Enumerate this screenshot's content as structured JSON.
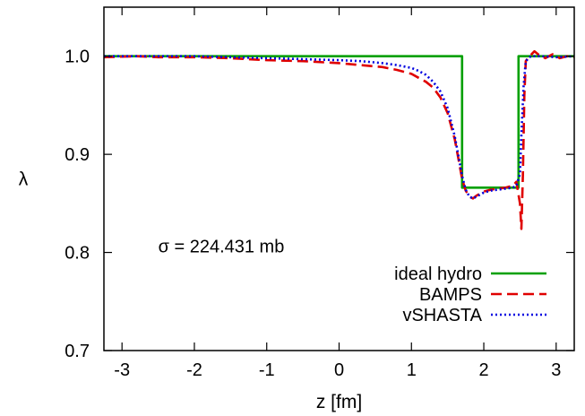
{
  "chart_data": {
    "type": "line",
    "title": "",
    "xlabel": "z [fm]",
    "ylabel": "λ",
    "xlim": [
      -3.25,
      3.25
    ],
    "ylim": [
      0.7,
      1.05
    ],
    "x_ticks": [
      -3,
      -2,
      -1,
      0,
      1,
      2,
      3
    ],
    "x_tick_labels": [
      "-3",
      "-2",
      "-1",
      "0",
      "1",
      "2",
      "3"
    ],
    "y_ticks": [
      0.7,
      0.8,
      0.9,
      1.0
    ],
    "y_tick_labels": [
      "0.7",
      "0.8",
      "0.9",
      "1.0"
    ],
    "grid": false,
    "legend_position": "bottom-right",
    "annotation": "σ = 224.431 mb",
    "series": [
      {
        "name": "ideal hydro",
        "color": "#00a000",
        "style": "solid",
        "points": [
          [
            -3.25,
            1.0
          ],
          [
            1.7,
            1.0
          ],
          [
            1.7,
            0.866
          ],
          [
            2.48,
            0.866
          ],
          [
            2.48,
            1.0
          ],
          [
            3.25,
            1.0
          ]
        ]
      },
      {
        "name": "BAMPS",
        "color": "#e00000",
        "style": "dashed",
        "points": [
          [
            -3.25,
            0.999
          ],
          [
            -2.8,
            1.0
          ],
          [
            -2.5,
            0.999
          ],
          [
            -2.0,
            0.999
          ],
          [
            -1.5,
            0.998
          ],
          [
            -1.0,
            0.996
          ],
          [
            -0.5,
            0.995
          ],
          [
            0.0,
            0.993
          ],
          [
            0.3,
            0.991
          ],
          [
            0.6,
            0.989
          ],
          [
            0.8,
            0.986
          ],
          [
            1.0,
            0.982
          ],
          [
            1.1,
            0.978
          ],
          [
            1.2,
            0.974
          ],
          [
            1.3,
            0.968
          ],
          [
            1.4,
            0.958
          ],
          [
            1.5,
            0.942
          ],
          [
            1.6,
            0.915
          ],
          [
            1.65,
            0.895
          ],
          [
            1.7,
            0.875
          ],
          [
            1.75,
            0.863
          ],
          [
            1.8,
            0.857
          ],
          [
            1.85,
            0.855
          ],
          [
            1.9,
            0.858
          ],
          [
            2.0,
            0.862
          ],
          [
            2.1,
            0.864
          ],
          [
            2.2,
            0.865
          ],
          [
            2.3,
            0.866
          ],
          [
            2.4,
            0.868
          ],
          [
            2.45,
            0.872
          ],
          [
            2.5,
            0.85
          ],
          [
            2.52,
            0.824
          ],
          [
            2.54,
            0.88
          ],
          [
            2.56,
            0.96
          ],
          [
            2.58,
            0.995
          ],
          [
            2.62,
            0.999
          ],
          [
            2.7,
            1.005
          ],
          [
            2.75,
            1.002
          ],
          [
            2.85,
            0.998
          ],
          [
            2.95,
            1.002
          ],
          [
            3.05,
            0.998
          ],
          [
            3.15,
            1.0
          ],
          [
            3.25,
            0.999
          ]
        ]
      },
      {
        "name": "vSHASTA",
        "color": "#0000e0",
        "style": "dotted",
        "points": [
          [
            -3.25,
            1.0
          ],
          [
            -2.5,
            1.0
          ],
          [
            -2.0,
            1.0
          ],
          [
            -1.5,
            0.999
          ],
          [
            -1.0,
            0.998
          ],
          [
            -0.5,
            0.997
          ],
          [
            0.0,
            0.996
          ],
          [
            0.3,
            0.995
          ],
          [
            0.6,
            0.993
          ],
          [
            0.8,
            0.991
          ],
          [
            1.0,
            0.988
          ],
          [
            1.1,
            0.985
          ],
          [
            1.2,
            0.981
          ],
          [
            1.3,
            0.974
          ],
          [
            1.4,
            0.964
          ],
          [
            1.5,
            0.947
          ],
          [
            1.6,
            0.918
          ],
          [
            1.65,
            0.898
          ],
          [
            1.7,
            0.878
          ],
          [
            1.75,
            0.864
          ],
          [
            1.8,
            0.857
          ],
          [
            1.85,
            0.855
          ],
          [
            1.9,
            0.857
          ],
          [
            2.0,
            0.861
          ],
          [
            2.1,
            0.863
          ],
          [
            2.2,
            0.864
          ],
          [
            2.3,
            0.865
          ],
          [
            2.4,
            0.866
          ],
          [
            2.45,
            0.868
          ],
          [
            2.5,
            0.88
          ],
          [
            2.52,
            0.92
          ],
          [
            2.55,
            0.97
          ],
          [
            2.58,
            0.995
          ],
          [
            2.65,
            1.0
          ],
          [
            2.8,
            1.0
          ],
          [
            3.0,
            0.999
          ],
          [
            3.25,
            1.0
          ]
        ]
      }
    ]
  }
}
